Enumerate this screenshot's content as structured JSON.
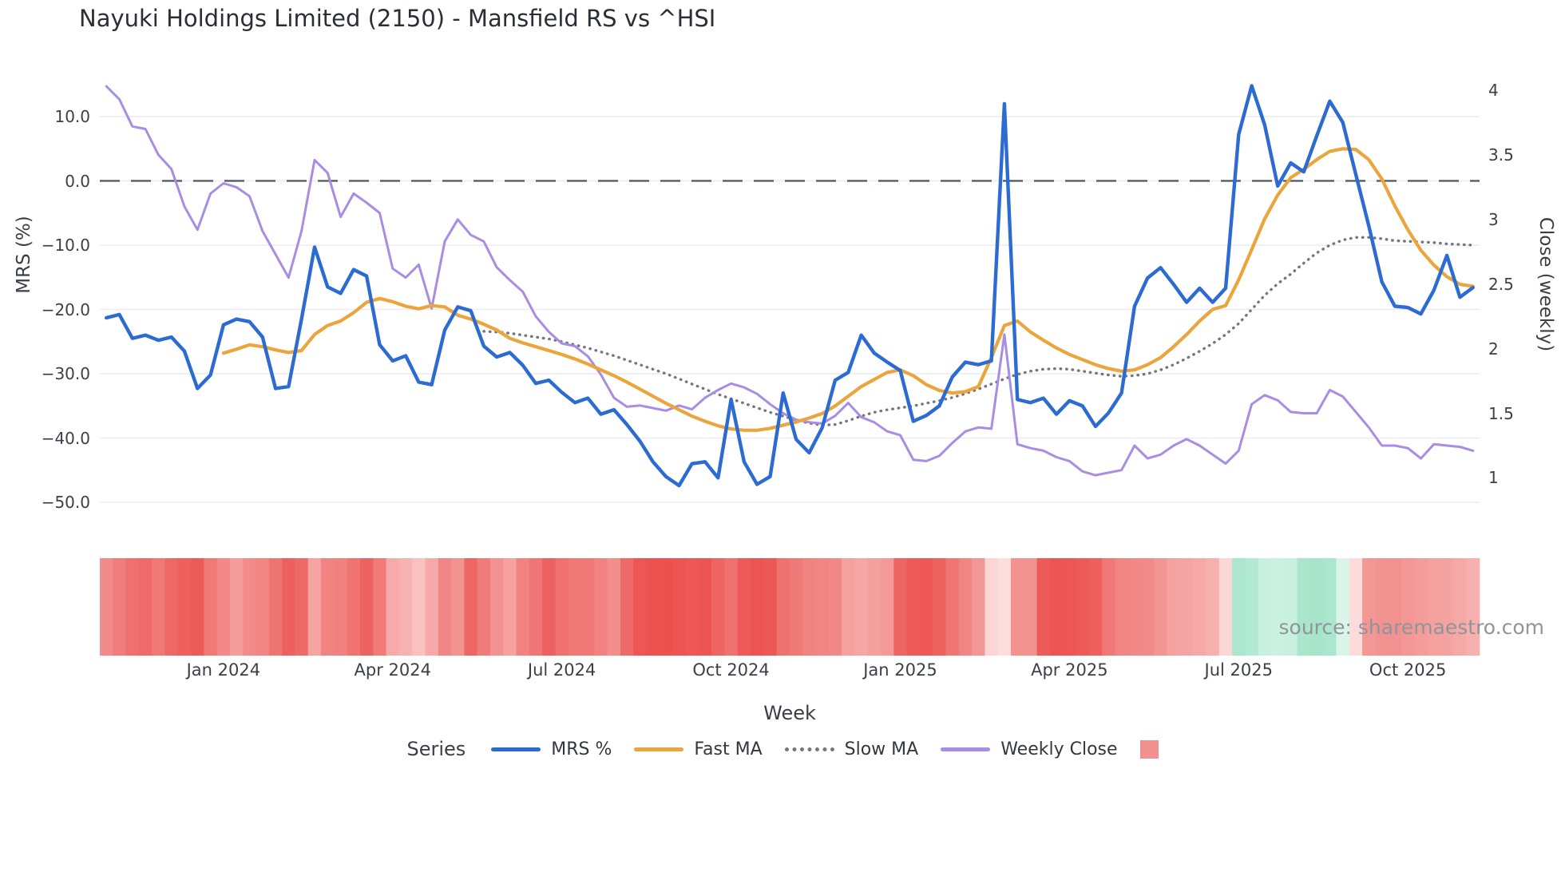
{
  "title": "Nayuki Holdings Limited (2150) - Mansfield RS vs ^HSI",
  "watermark": "source: sharemaestro.com",
  "axes": {
    "left_label": "MRS (%)",
    "right_label": "Close (weekly)",
    "x_label": "Week",
    "left_ticks": [
      {
        "label": "10.0",
        "value": 10
      },
      {
        "label": "0.0",
        "value": 0
      },
      {
        "label": "−10.0",
        "value": -10
      },
      {
        "label": "−20.0",
        "value": -20
      },
      {
        "label": "−30.0",
        "value": -30
      },
      {
        "label": "−40.0",
        "value": -40
      },
      {
        "label": "−50.0",
        "value": -50
      }
    ],
    "right_ticks": [
      {
        "label": "4",
        "value": 4
      },
      {
        "label": "3.5",
        "value": 3.5
      },
      {
        "label": "3",
        "value": 3
      },
      {
        "label": "2.5",
        "value": 2.5
      },
      {
        "label": "2",
        "value": 2
      },
      {
        "label": "1.5",
        "value": 1.5
      },
      {
        "label": "1",
        "value": 1
      }
    ],
    "x_ticks": [
      {
        "label": "Jan 2024",
        "week": 9
      },
      {
        "label": "Apr 2024",
        "week": 22
      },
      {
        "label": "Jul 2024",
        "week": 35
      },
      {
        "label": "Oct 2024",
        "week": 48
      },
      {
        "label": "Jan 2025",
        "week": 61
      },
      {
        "label": "Apr 2025",
        "week": 74
      },
      {
        "label": "Jul 2025",
        "week": 87
      },
      {
        "label": "Oct 2025",
        "week": 100
      }
    ]
  },
  "legend": {
    "title": "Series",
    "items": [
      {
        "label": "MRS %",
        "style": "solid",
        "color": "#2c6bd2"
      },
      {
        "label": "Fast MA",
        "style": "solid",
        "color": "#eba53d"
      },
      {
        "label": "Slow MA",
        "style": "dotted",
        "color": "#74787e"
      },
      {
        "label": "Weekly Close",
        "style": "solid",
        "color": "#a88de2"
      },
      {
        "label": "",
        "style": "square",
        "color": "#f29090"
      }
    ]
  },
  "colors": {
    "gridline": "#ebebf1",
    "zero_line": "#4e5363",
    "mrs": "#2c6bd2",
    "fast_ma": "#eba53d",
    "slow_ma": "#74787e",
    "weekly_close": "#a88de2",
    "heat_legend": "#f29090"
  },
  "chart_data": {
    "type": "line",
    "title": "Nayuki Holdings Limited (2150) - Mansfield RS vs ^HSI",
    "xlabel": "Week",
    "ylabel_left": "MRS (%)",
    "ylabel_right": "Close (weekly)",
    "ylim_left": [
      -54,
      17
    ],
    "ylim_right": [
      0.62,
      4.14
    ],
    "grid": true,
    "legend_position": "bottom",
    "n_weeks": 106,
    "zero_line": {
      "value": 0,
      "style": "dashed",
      "color": "#4e5363"
    },
    "series": [
      {
        "name": "MRS %",
        "axis": "left",
        "color": "#2c6bd2",
        "style": "solid",
        "width": 4.4,
        "values": [
          -21.3,
          -20.8,
          -24.5,
          -24.0,
          -24.8,
          -24.3,
          -26.5,
          -32.3,
          -30.2,
          -22.4,
          -21.5,
          -21.9,
          -24.3,
          -32.3,
          -32.0,
          -21.5,
          -10.3,
          -16.5,
          -17.5,
          -13.8,
          -14.8,
          -25.5,
          -28.0,
          -27.2,
          -31.3,
          -31.7,
          -23.2,
          -19.6,
          -20.2,
          -25.7,
          -27.4,
          -26.7,
          -28.7,
          -31.5,
          -31.0,
          -32.9,
          -34.5,
          -33.8,
          -36.3,
          -35.6,
          -37.9,
          -40.5,
          -43.7,
          -46.0,
          -47.4,
          -44.0,
          -43.7,
          -46.2,
          -34.0,
          -43.7,
          -47.2,
          -46.0,
          -33.0,
          -40.2,
          -42.3,
          -38.4,
          -31.0,
          -29.8,
          -24.0,
          -26.8,
          -28.2,
          -29.5,
          -37.4,
          -36.5,
          -35.0,
          -30.5,
          -28.2,
          -28.6,
          -28.0,
          12.0,
          -34.0,
          -34.5,
          -33.8,
          -36.3,
          -34.2,
          -35.0,
          -38.2,
          -36.1,
          -33.0,
          -19.5,
          -15.1,
          -13.5,
          -16.1,
          -18.9,
          -16.7,
          -18.9,
          -16.7,
          7.2,
          14.8,
          8.7,
          -0.8,
          2.8,
          1.4,
          7.0,
          12.4,
          9.1,
          1.0,
          -7.0,
          -15.7,
          -19.5,
          -19.7,
          -20.7,
          -17.0,
          -11.6,
          -18.1,
          -16.6
        ]
      },
      {
        "name": "Fast MA",
        "axis": "left",
        "color": "#eba53d",
        "style": "solid",
        "width": 4.2,
        "values": [
          null,
          null,
          null,
          null,
          null,
          null,
          null,
          null,
          null,
          -26.8,
          -26.2,
          -25.5,
          -25.8,
          -26.3,
          -26.7,
          -26.4,
          -23.9,
          -22.5,
          -21.8,
          -20.5,
          -18.9,
          -18.3,
          -18.8,
          -19.5,
          -19.9,
          -19.4,
          -19.6,
          -20.9,
          -21.5,
          -22.3,
          -23.2,
          -24.5,
          -25.2,
          -25.8,
          -26.4,
          -27.0,
          -27.7,
          -28.5,
          -29.4,
          -30.3,
          -31.3,
          -32.4,
          -33.5,
          -34.6,
          -35.6,
          -36.6,
          -37.4,
          -38.1,
          -38.6,
          -38.8,
          -38.8,
          -38.5,
          -38.0,
          -37.5,
          -36.9,
          -36.2,
          -35.0,
          -33.5,
          -32.0,
          -30.9,
          -29.8,
          -29.4,
          -30.3,
          -31.7,
          -32.6,
          -33.0,
          -32.8,
          -32.0,
          -27.5,
          -22.5,
          -21.8,
          -23.5,
          -24.8,
          -26.0,
          -27.0,
          -27.8,
          -28.6,
          -29.2,
          -29.6,
          -29.4,
          -28.6,
          -27.5,
          -25.8,
          -23.9,
          -21.8,
          -20.0,
          -19.4,
          -15.4,
          -10.7,
          -5.9,
          -2.2,
          0.5,
          1.8,
          3.3,
          4.6,
          5.0,
          4.9,
          3.3,
          0.3,
          -3.9,
          -7.6,
          -10.8,
          -13.1,
          -14.9,
          -16.1,
          -16.4
        ]
      },
      {
        "name": "Slow MA",
        "axis": "left",
        "color": "#74787e",
        "style": "dotted",
        "width": 3.4,
        "values": [
          null,
          null,
          null,
          null,
          null,
          null,
          null,
          null,
          null,
          null,
          null,
          null,
          null,
          null,
          null,
          null,
          null,
          null,
          null,
          null,
          null,
          null,
          null,
          null,
          null,
          null,
          null,
          null,
          null,
          -23.4,
          -23.5,
          -23.7,
          -24.0,
          -24.3,
          -24.6,
          -25.0,
          -25.5,
          -26.0,
          -26.6,
          -27.2,
          -27.9,
          -28.6,
          -29.3,
          -30.0,
          -30.8,
          -31.6,
          -32.4,
          -33.2,
          -33.9,
          -34.6,
          -35.3,
          -36.0,
          -36.6,
          -37.2,
          -37.7,
          -38.0,
          -37.9,
          -37.3,
          -36.6,
          -36.0,
          -35.6,
          -35.3,
          -35.0,
          -34.6,
          -34.2,
          -33.7,
          -33.1,
          -32.4,
          -31.6,
          -30.8,
          -30.1,
          -29.6,
          -29.3,
          -29.2,
          -29.3,
          -29.6,
          -29.9,
          -30.2,
          -30.4,
          -30.3,
          -30.0,
          -29.4,
          -28.6,
          -27.6,
          -26.5,
          -25.3,
          -23.9,
          -22.2,
          -20.0,
          -17.8,
          -16.0,
          -14.5,
          -12.8,
          -11.2,
          -10.0,
          -9.2,
          -8.8,
          -8.8,
          -9.0,
          -9.3,
          -9.4,
          -9.5,
          -9.6,
          -9.8,
          -9.9,
          -10.0
        ]
      },
      {
        "name": "Weekly Close",
        "axis": "right",
        "color": "#a88de2",
        "style": "solid",
        "width": 3.0,
        "values": [
          4.03,
          3.93,
          3.72,
          3.7,
          3.5,
          3.39,
          3.1,
          2.92,
          3.2,
          3.28,
          3.25,
          3.18,
          2.91,
          2.73,
          2.55,
          2.91,
          3.46,
          3.36,
          3.02,
          3.2,
          3.13,
          3.05,
          2.62,
          2.55,
          2.65,
          2.31,
          2.83,
          3.0,
          2.88,
          2.83,
          2.63,
          2.53,
          2.44,
          2.25,
          2.13,
          2.04,
          2.02,
          1.94,
          1.8,
          1.62,
          1.55,
          1.56,
          1.54,
          1.52,
          1.56,
          1.53,
          1.62,
          1.68,
          1.73,
          1.7,
          1.65,
          1.57,
          1.5,
          1.45,
          1.43,
          1.42,
          1.48,
          1.58,
          1.47,
          1.43,
          1.36,
          1.33,
          1.14,
          1.13,
          1.17,
          1.27,
          1.36,
          1.39,
          1.38,
          2.11,
          1.26,
          1.23,
          1.21,
          1.16,
          1.13,
          1.05,
          1.02,
          1.04,
          1.06,
          1.25,
          1.15,
          1.18,
          1.25,
          1.3,
          1.25,
          1.18,
          1.11,
          1.21,
          1.57,
          1.64,
          1.6,
          1.51,
          1.5,
          1.5,
          1.68,
          1.63,
          1.51,
          1.39,
          1.25,
          1.25,
          1.23,
          1.15,
          1.26,
          1.25,
          1.24,
          1.21
        ]
      }
    ],
    "heatmap_strip": {
      "colors": [
        "#f28b8a",
        "#f07d7b",
        "#ef706e",
        "#ee6b69",
        "#f07977",
        "#ee6866",
        "#ed605e",
        "#ec5a58",
        "#f07a78",
        "#f28988",
        "#f49d9b",
        "#f28b89",
        "#f18684",
        "#ef7573",
        "#ed605e",
        "#ee6a68",
        "#f5a4a2",
        "#f18381",
        "#f18180",
        "#ef7371",
        "#ed6361",
        "#f07b79",
        "#f6abaa",
        "#f7b3b2",
        "#f9c1c0",
        "#f6a9a8",
        "#f18785",
        "#f39391",
        "#ee6765",
        "#f07c7a",
        "#f39290",
        "#f5a2a0",
        "#f18381",
        "#ef7674",
        "#ed6260",
        "#ef7270",
        "#f07a78",
        "#f07876",
        "#f18482",
        "#f28f8d",
        "#ee6967",
        "#ed5654",
        "#ec5250",
        "#ec5150",
        "#ec5452",
        "#ed5755",
        "#ed5553",
        "#ee6462",
        "#f07270",
        "#ed5a58",
        "#ec5351",
        "#ed5856",
        "#f07270",
        "#f07a78",
        "#f08280",
        "#f18583",
        "#f18886",
        "#f4a19f",
        "#f5a7a5",
        "#f4a09e",
        "#f49a98",
        "#ee6563",
        "#ed5a58",
        "#ed5755",
        "#ee6260",
        "#f07573",
        "#f18583",
        "#f29795",
        "#fbd6d5",
        "#fcdedd",
        "#f3928f",
        "#f29391",
        "#ed5b59",
        "#ec5553",
        "#ed5654",
        "#ed5a58",
        "#ee5f5d",
        "#f07876",
        "#f08583",
        "#f18886",
        "#f18a88",
        "#f29694",
        "#f4a3a1",
        "#f4a5a3",
        "#f5aaa8",
        "#f6b0ae",
        "#fbd8d7",
        "#abe7ce",
        "#b2e9d2",
        "#c8f0de",
        "#cbf1e0",
        "#c8f0de",
        "#a9e6cb",
        "#a6e5c9",
        "#abe7ce",
        "#d8f5e8",
        "#fbdcdb",
        "#f39795",
        "#f29391",
        "#f29290",
        "#f39795",
        "#f49c9a",
        "#f4a19f",
        "#f4a3a1",
        "#f5a9a7",
        "#f6b1af"
      ]
    }
  }
}
